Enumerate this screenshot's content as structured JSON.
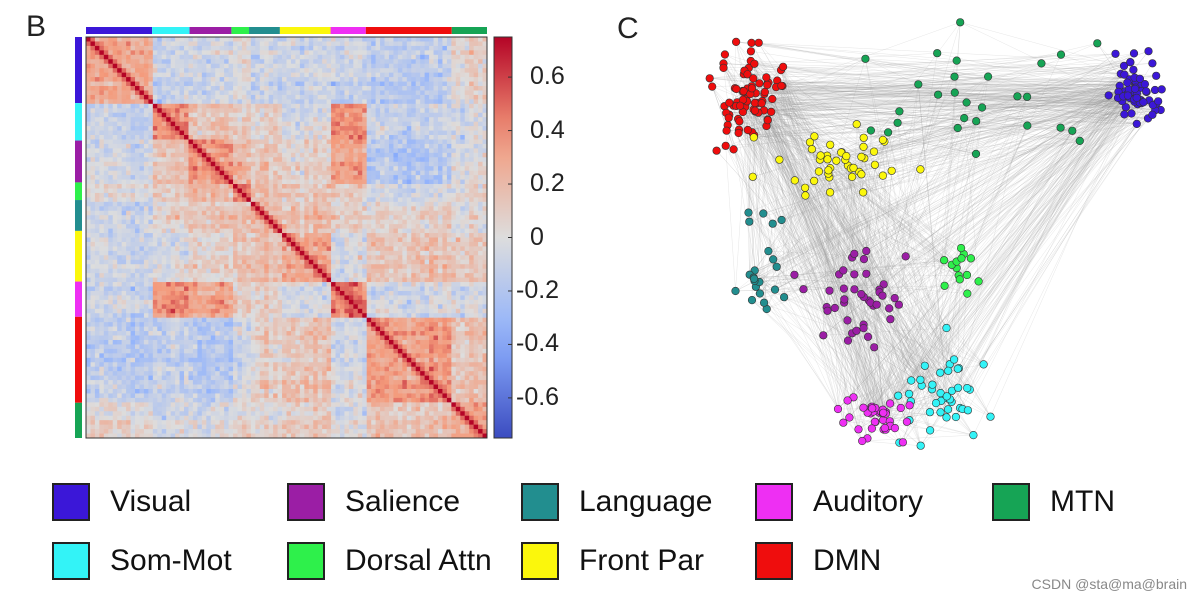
{
  "panels": {
    "b_label": "B",
    "c_label": "C"
  },
  "networks": [
    {
      "name": "Visual",
      "color": "#3b17d8"
    },
    {
      "name": "Som-Mot",
      "color": "#33f3f7"
    },
    {
      "name": "Salience",
      "color": "#9b1ea5"
    },
    {
      "name": "Dorsal Attn",
      "color": "#2ef04b"
    },
    {
      "name": "Language",
      "color": "#228e8f"
    },
    {
      "name": "Front Par",
      "color": "#fbf70c"
    },
    {
      "name": "Auditory",
      "color": "#ee2ff3"
    },
    {
      "name": "DMN",
      "color": "#ef0d0d"
    },
    {
      "name": "MTN",
      "color": "#16a455"
    }
  ],
  "legend": {
    "items": [
      "Visual",
      "Salience",
      "Language",
      "Auditory",
      "MTN",
      "Som-Mot",
      "Dorsal Attn",
      "Front Par",
      "DMN"
    ]
  },
  "chart_data": [
    {
      "type": "heatmap",
      "title": "",
      "value_range": [
        -0.75,
        0.75
      ],
      "colorbar": {
        "ticks": [
          0.6,
          0.4,
          0.2,
          0,
          -0.2,
          -0.4,
          -0.6
        ],
        "tick_labels": [
          "0.6",
          "0.4",
          "0.2",
          "0",
          "-0.2",
          "-0.4",
          "-0.6"
        ],
        "colormap": "blue-white-red"
      },
      "module_order": [
        "Visual",
        "Som-Mot",
        "Salience",
        "Dorsal Attn",
        "Language",
        "Front Par",
        "Auditory",
        "DMN",
        "MTN"
      ],
      "module_sizes": [
        30,
        17,
        19,
        8,
        14,
        23,
        16,
        39,
        16
      ],
      "between_module_corr": [
        [
          0.3,
          -0.1,
          -0.08,
          0.02,
          -0.05,
          -0.08,
          -0.08,
          -0.15,
          0.05
        ],
        [
          -0.1,
          0.4,
          0.15,
          0.1,
          0.1,
          -0.05,
          0.4,
          -0.1,
          -0.05
        ],
        [
          -0.08,
          0.15,
          0.35,
          0.2,
          0.15,
          0.05,
          0.3,
          -0.2,
          -0.05
        ],
        [
          0.02,
          0.1,
          0.2,
          0.4,
          0.2,
          0.15,
          0.1,
          -0.05,
          0.05
        ],
        [
          -0.05,
          0.1,
          0.15,
          0.2,
          0.3,
          0.2,
          0.1,
          0.1,
          0.05
        ],
        [
          -0.08,
          -0.05,
          0.05,
          0.15,
          0.2,
          0.3,
          -0.05,
          0.15,
          0.1
        ],
        [
          -0.08,
          0.4,
          0.3,
          0.1,
          0.1,
          -0.05,
          0.45,
          -0.05,
          -0.05
        ],
        [
          -0.15,
          -0.1,
          -0.2,
          -0.05,
          0.1,
          0.15,
          -0.05,
          0.35,
          0.15
        ],
        [
          0.05,
          -0.05,
          -0.05,
          0.05,
          0.05,
          0.1,
          -0.05,
          0.15,
          0.3
        ]
      ]
    },
    {
      "type": "scatter",
      "title": "",
      "description_nodes": "Force-directed network layout; node coordinates in normalized layout units [0,1], y downward",
      "nodes": [
        {
          "network": "DMN",
          "count": 80,
          "center": [
            0.14,
            0.17
          ],
          "spread": [
            0.06,
            0.08
          ]
        },
        {
          "network": "Visual",
          "count": 65,
          "center": [
            0.9,
            0.17
          ],
          "spread": [
            0.04,
            0.06
          ]
        },
        {
          "network": "MTN",
          "count": 28,
          "center": [
            0.6,
            0.18
          ],
          "spread": [
            0.2,
            0.1
          ]
        },
        {
          "network": "Front Par",
          "count": 45,
          "center": [
            0.33,
            0.34
          ],
          "spread": [
            0.12,
            0.06
          ]
        },
        {
          "network": "Language",
          "count": 22,
          "center": [
            0.18,
            0.55
          ],
          "spread": [
            0.05,
            0.16
          ]
        },
        {
          "network": "Dorsal Attn",
          "count": 14,
          "center": [
            0.57,
            0.58
          ],
          "spread": [
            0.04,
            0.07
          ]
        },
        {
          "network": "Salience",
          "count": 42,
          "center": [
            0.36,
            0.66
          ],
          "spread": [
            0.08,
            0.1
          ]
        },
        {
          "network": "Som-Mot",
          "count": 42,
          "center": [
            0.53,
            0.88
          ],
          "spread": [
            0.07,
            0.08
          ]
        },
        {
          "network": "Auditory",
          "count": 38,
          "center": [
            0.4,
            0.93
          ],
          "spread": [
            0.06,
            0.05
          ]
        }
      ],
      "edges": "dense light-grey connections between all nodes"
    }
  ],
  "watermark": "CSDN @sta@ma@brain"
}
